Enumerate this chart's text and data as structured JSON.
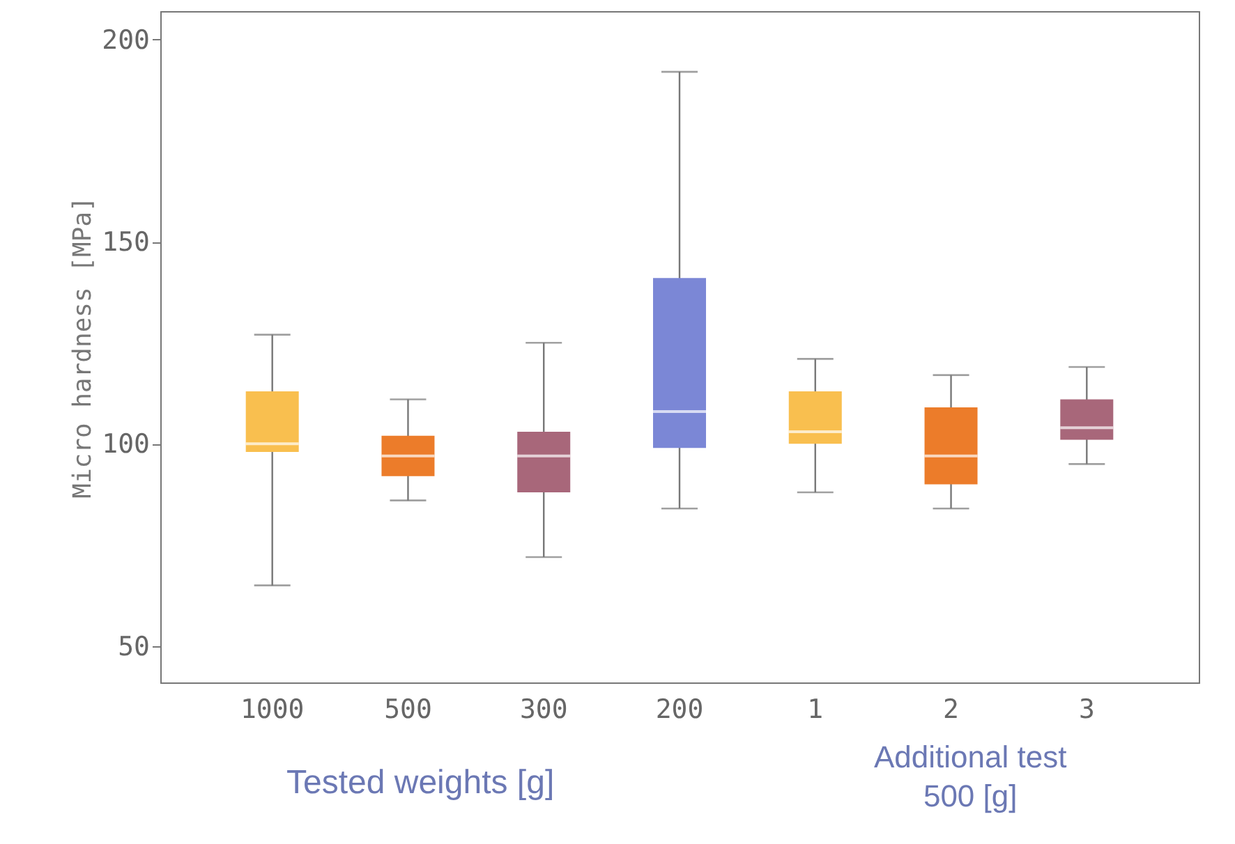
{
  "chart_data": {
    "type": "box",
    "xlabel": "Tested weights [g]",
    "ylabel": "Micro hardness [MPa]",
    "categories": [
      "1000",
      "500",
      "300",
      "200",
      "1",
      "2",
      "3"
    ],
    "colors": [
      "#f9bf4f",
      "#ec7c2a",
      "#a8677a",
      "#7b87d6",
      "#f9bf4f",
      "#ec7c2a",
      "#a8677a"
    ],
    "boxes": [
      {
        "low": 65,
        "q1": 98,
        "median": 100,
        "q3": 113,
        "high": 127
      },
      {
        "low": 86,
        "q1": 92,
        "median": 97,
        "q3": 102,
        "high": 111
      },
      {
        "low": 72,
        "q1": 88,
        "median": 97,
        "q3": 103,
        "high": 125
      },
      {
        "low": 84,
        "q1": 99,
        "median": 108,
        "q3": 141,
        "high": 192
      },
      {
        "low": 88,
        "q1": 100,
        "median": 103,
        "q3": 113,
        "high": 121
      },
      {
        "low": 84,
        "q1": 90,
        "median": 97,
        "q3": 109,
        "high": 117
      },
      {
        "low": 95,
        "q1": 101,
        "median": 104,
        "q3": 111,
        "high": 119
      }
    ],
    "ylim": [
      41,
      207
    ],
    "yticks": [
      50,
      100,
      150,
      200
    ],
    "annotations": [
      "Additional test\n500 [g]"
    ]
  }
}
